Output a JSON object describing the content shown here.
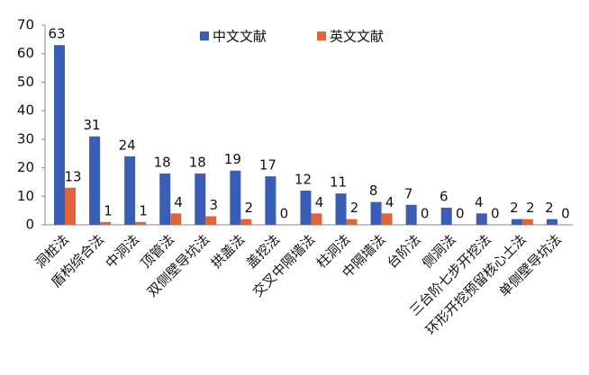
{
  "chart_data": {
    "type": "bar",
    "categories": [
      "洞桩法",
      "盾构综合法",
      "中洞法",
      "顶管法",
      "双侧壁导坑法",
      "拱盖法",
      "盖挖法",
      "交叉中隔墙法",
      "柱洞法",
      "中隔墙法",
      "台阶法",
      "侧洞法",
      "三台阶七步开挖法",
      "环形开挖预留核心土法",
      "单侧壁导坑法"
    ],
    "series": [
      {
        "name": "中文文献",
        "color": "#3a5db6",
        "values": [
          63,
          31,
          24,
          18,
          18,
          19,
          17,
          12,
          11,
          8,
          7,
          6,
          4,
          2,
          2
        ]
      },
      {
        "name": "英文文献",
        "color": "#e0633a",
        "values": [
          13,
          1,
          1,
          4,
          3,
          2,
          0,
          4,
          2,
          4,
          0,
          0,
          0,
          2,
          0
        ]
      }
    ],
    "ylim": [
      0,
      70
    ],
    "yticks": [
      0,
      10,
      20,
      30,
      40,
      50,
      60,
      70
    ],
    "grid": false,
    "legend": "top"
  }
}
